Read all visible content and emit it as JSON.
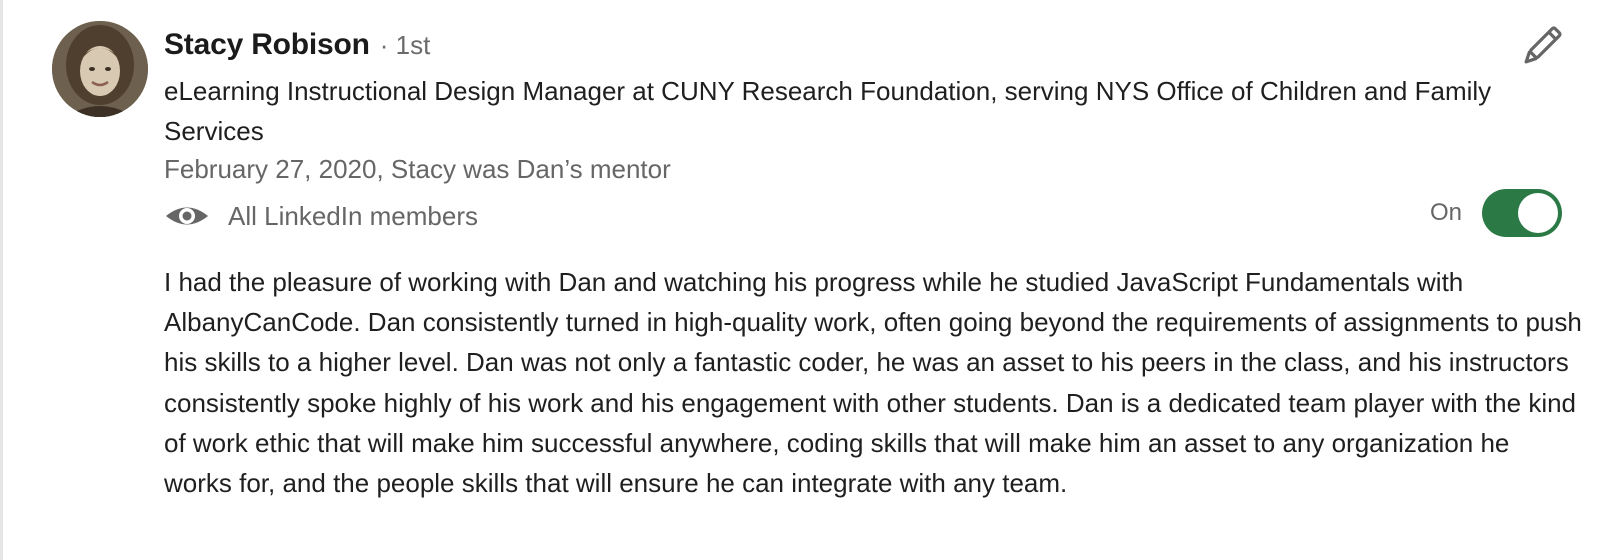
{
  "recommendation": {
    "author": {
      "name": "Stacy Robison",
      "degree": "· 1st",
      "headline": "eLearning Instructional Design Manager at CUNY Research Foundation, serving NYS Office of Children and Family Services",
      "avatar_icon": "profile-photo"
    },
    "meta": "February 27, 2020, Stacy was Dan’s mentor",
    "visibility": {
      "icon": "eye-icon",
      "label": "All LinkedIn members"
    },
    "toggle": {
      "label": "On",
      "state": "on",
      "color": "#2b7a46"
    },
    "edit_icon": "pencil-icon",
    "text": "I had the pleasure of working with Dan and watching his progress while he studied JavaScript Fundamentals with AlbanyCanCode. Dan consistently turned in high-quality work, often going beyond the requirements of assignments to push his skills to a higher level. Dan was not only a fantastic coder, he was an asset to his peers in the class, and his instructors consistently spoke highly of his work and his engagement with other students. Dan is a dedicated team player with the kind of work ethic that will make him successful anywhere, coding skills that will make him an asset to any organization he works for, and the people skills that will ensure he can integrate with any team."
  }
}
